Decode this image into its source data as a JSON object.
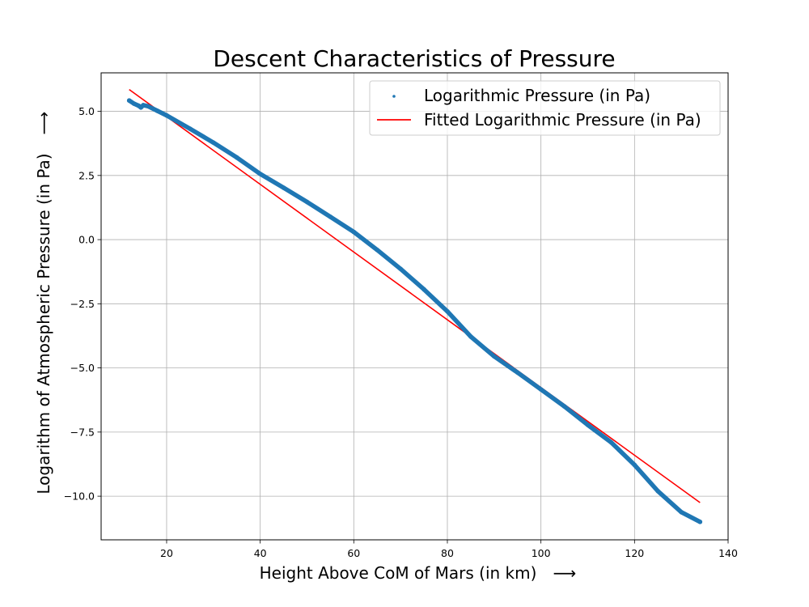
{
  "chart_data": {
    "type": "scatter",
    "title": "Descent Characteristics of Pressure",
    "xlabel": "Height Above CoM of Mars (in km)",
    "xlabel_arrow": "⟶",
    "ylabel": "Logarithm of Atmospheric Pressure (in Pa)",
    "ylabel_arrow": "⟶",
    "xlim": [
      6,
      140
    ],
    "ylim": [
      -11.7,
      6.5
    ],
    "xticks": [
      20,
      40,
      60,
      80,
      100,
      120,
      140
    ],
    "xtick_labels": [
      "20",
      "40",
      "60",
      "80",
      "100",
      "120",
      "140"
    ],
    "yticks": [
      5.0,
      2.5,
      0.0,
      -2.5,
      -5.0,
      -7.5,
      -10.0
    ],
    "ytick_labels": [
      "5.0",
      "2.5",
      "0.0",
      "−2.5",
      "−5.0",
      "−7.5",
      "−10.0"
    ],
    "grid": true,
    "legend_position": "upper right",
    "series": [
      {
        "name": "Logarithmic Pressure (in Pa)",
        "kind": "scatter",
        "color": "#1f77b4",
        "points": [
          [
            12.0,
            5.42
          ],
          [
            13.0,
            5.3
          ],
          [
            14.0,
            5.22
          ],
          [
            14.5,
            5.15
          ],
          [
            15.0,
            5.24
          ],
          [
            16.0,
            5.2
          ],
          [
            18.0,
            5.02
          ],
          [
            20.0,
            4.84
          ],
          [
            25.0,
            4.32
          ],
          [
            30.0,
            3.78
          ],
          [
            35.0,
            3.2
          ],
          [
            40.0,
            2.56
          ],
          [
            45.0,
            2.02
          ],
          [
            50.0,
            1.47
          ],
          [
            55.0,
            0.89
          ],
          [
            60.0,
            0.3
          ],
          [
            65.0,
            -0.4
          ],
          [
            70.0,
            -1.14
          ],
          [
            75.0,
            -1.94
          ],
          [
            80.0,
            -2.8
          ],
          [
            85.0,
            -3.78
          ],
          [
            90.0,
            -4.55
          ],
          [
            95.0,
            -5.18
          ],
          [
            100.0,
            -5.84
          ],
          [
            105.0,
            -6.5
          ],
          [
            110.0,
            -7.22
          ],
          [
            115.0,
            -7.9
          ],
          [
            120.0,
            -8.78
          ],
          [
            125.0,
            -9.8
          ],
          [
            130.0,
            -10.62
          ],
          [
            134.0,
            -11.0
          ]
        ]
      },
      {
        "name": "Fitted Logarithmic Pressure (in Pa)",
        "kind": "line",
        "color": "#ff0000",
        "points": [
          [
            12.0,
            5.85
          ],
          [
            134.0,
            -10.25
          ]
        ]
      }
    ]
  }
}
